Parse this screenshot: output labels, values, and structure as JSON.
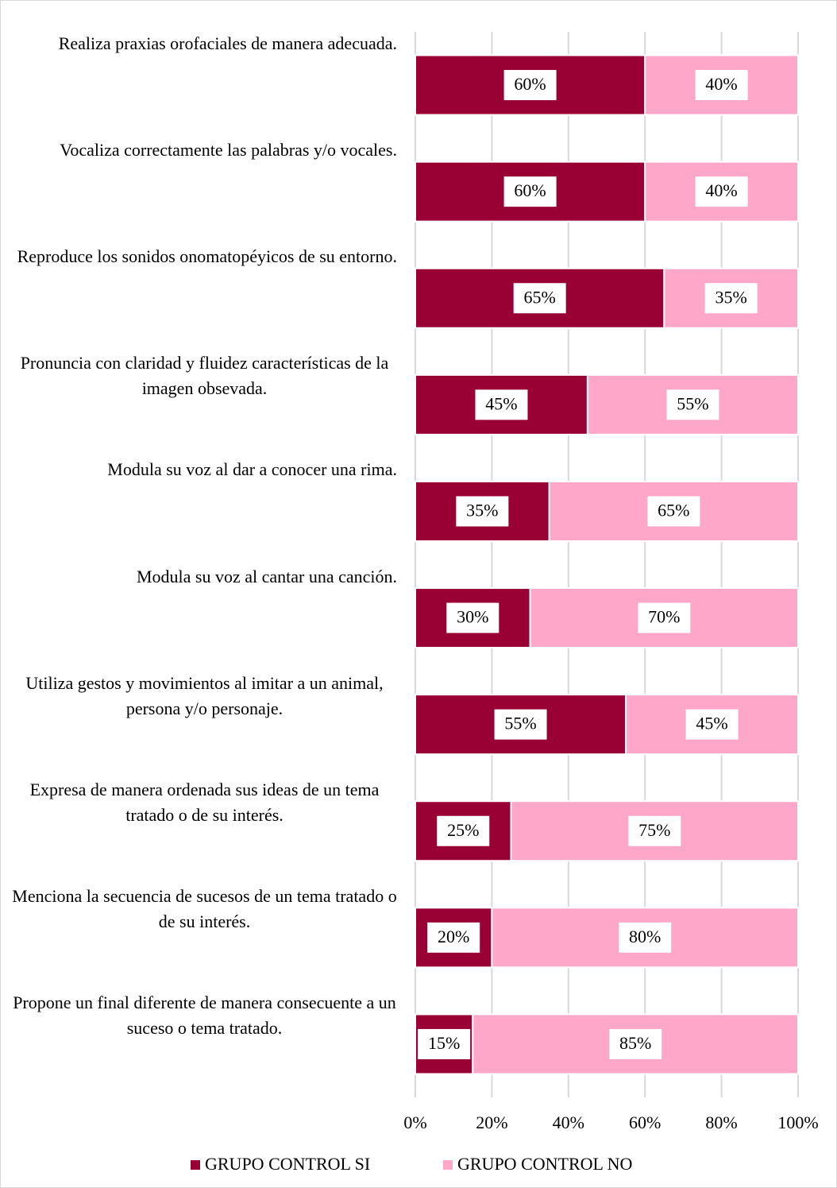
{
  "chart_data": {
    "type": "stacked-bar-horizontal",
    "categories": [
      "Realiza praxias orofaciales de manera adecuada.",
      "Vocaliza correctamente las palabras y/o vocales.",
      "Reproduce los sonidos onomatopéyicos de su entorno.",
      "Pronuncia con claridad y fluidez características de la imagen obsevada.",
      "Modula su voz al dar a conocer una rima.",
      "Modula su voz al cantar una canción.",
      "Utiliza gestos y movimientos al imitar a un animal, persona y/o personaje.",
      "Expresa de manera ordenada sus ideas de un tema tratado o de su interés.",
      "Menciona la secuencia de sucesos de un tema tratado o de su interés.",
      "Propone un final diferente de manera consecuente a un suceso o tema tratado."
    ],
    "series": [
      {
        "name": "GRUPO CONTROL SI",
        "color": "#990033",
        "values": [
          60,
          60,
          65,
          45,
          35,
          30,
          55,
          25,
          20,
          15
        ],
        "value_labels": [
          "60%",
          "60%",
          "65%",
          "45%",
          "35%",
          "30%",
          "55%",
          "25%",
          "20%",
          "15%"
        ]
      },
      {
        "name": "GRUPO CONTROL NO",
        "color": "#ffa7c8",
        "values": [
          40,
          40,
          35,
          55,
          65,
          70,
          45,
          75,
          80,
          85
        ],
        "value_labels": [
          "40%",
          "40%",
          "35%",
          "55%",
          "65%",
          "70%",
          "45%",
          "75%",
          "80%",
          "85%"
        ]
      }
    ],
    "xlim": [
      0,
      100
    ],
    "xticks": [
      {
        "value": 0,
        "label": "0%"
      },
      {
        "value": 20,
        "label": "20%"
      },
      {
        "value": 40,
        "label": "40%"
      },
      {
        "value": 60,
        "label": "60%"
      },
      {
        "value": 80,
        "label": "80%"
      },
      {
        "value": 100,
        "label": "100%"
      }
    ],
    "grid": true,
    "legend": "bottom"
  }
}
